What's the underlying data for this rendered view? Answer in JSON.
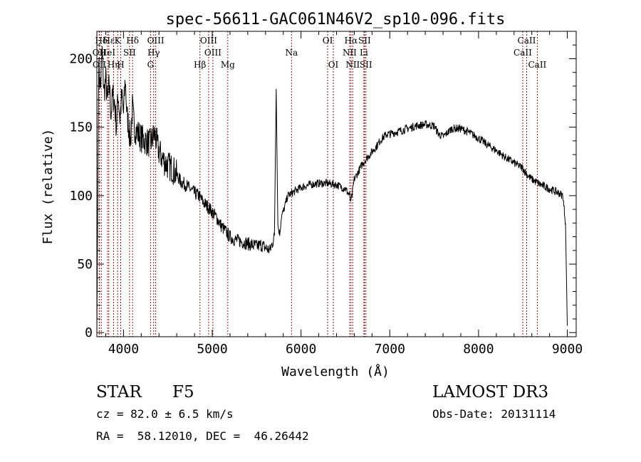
{
  "chart_data": {
    "type": "line",
    "title": "spec-56611-GAC061N46V2_sp10-096.fits",
    "xlabel": "Wavelength (Å)",
    "ylabel": "Flux (relative)",
    "xlim": [
      3700,
      9100
    ],
    "ylim": [
      -3,
      220
    ],
    "xticks": [
      4000,
      5000,
      6000,
      7000,
      8000,
      9000
    ],
    "yticks": [
      0,
      50,
      100,
      150,
      200
    ],
    "series": [
      {
        "name": "spectrum",
        "color": "#000000",
        "x": [
          3700,
          3720,
          3740,
          3760,
          3780,
          3800,
          3820,
          3840,
          3860,
          3880,
          3900,
          3920,
          3940,
          3960,
          3980,
          4000,
          4020,
          4040,
          4060,
          4080,
          4100,
          4120,
          4150,
          4200,
          4250,
          4300,
          4350,
          4400,
          4450,
          4500,
          4550,
          4600,
          4650,
          4700,
          4750,
          4800,
          4850,
          4900,
          4950,
          5000,
          5050,
          5100,
          5150,
          5200,
          5250,
          5300,
          5350,
          5400,
          5450,
          5500,
          5550,
          5600,
          5650,
          5700,
          5720,
          5740,
          5760,
          5780,
          5800,
          5850,
          5900,
          5950,
          6000,
          6100,
          6200,
          6300,
          6400,
          6500,
          6550,
          6563,
          6600,
          6650,
          6700,
          6800,
          6850,
          6900,
          6950,
          6970,
          7000,
          7100,
          7200,
          7300,
          7400,
          7500,
          7550,
          7600,
          7700,
          7800,
          7900,
          8000,
          8100,
          8200,
          8300,
          8400,
          8500,
          8550,
          8600,
          8700,
          8800,
          8900,
          8950,
          8980,
          9000
        ],
        "y": [
          0,
          195,
          178,
          205,
          175,
          185,
          168,
          182,
          160,
          174,
          168,
          150,
          175,
          156,
          172,
          160,
          185,
          158,
          150,
          140,
          165,
          150,
          147,
          142,
          140,
          138,
          145,
          132,
          126,
          122,
          120,
          115,
          110,
          108,
          105,
          102,
          100,
          95,
          92,
          88,
          84,
          78,
          74,
          70,
          68,
          67,
          66,
          65,
          64,
          63,
          64,
          62,
          60,
          70,
          180,
          78,
          72,
          85,
          88,
          100,
          102,
          104,
          106,
          108,
          109,
          109,
          108,
          105,
          100,
          95,
          112,
          118,
          124,
          132,
          136,
          141,
          144,
          145,
          145,
          147,
          149,
          151,
          152,
          151,
          145,
          143,
          149,
          149,
          146,
          142,
          137,
          133,
          128,
          124,
          120,
          115,
          112,
          108,
          105,
          102,
          100,
          80,
          5
        ]
      }
    ],
    "line_ids": [
      {
        "name": "Hδ",
        "wavelength": 3750,
        "row": 1
      },
      {
        "name": "OII",
        "wavelength": 3727,
        "row": 2
      },
      {
        "name": "OII",
        "wavelength": 3729,
        "row": 3
      },
      {
        "name": "Hε",
        "wavelength": 3835,
        "row": 1
      },
      {
        "name": "HeI",
        "wavelength": 3820,
        "row": 2
      },
      {
        "name": "Hη",
        "wavelength": 3889,
        "row": 3
      },
      {
        "name": "K",
        "wavelength": 3934,
        "row": 1
      },
      {
        "name": "SII",
        "wavelength": 4068,
        "row": 2
      },
      {
        "name": "H",
        "wavelength": 3969,
        "row": 3
      },
      {
        "name": "Hδ",
        "wavelength": 4102,
        "row": 1
      },
      {
        "name": "OIII",
        "wavelength": 4363,
        "row": 1
      },
      {
        "name": "Hγ",
        "wavelength": 4340,
        "row": 2
      },
      {
        "name": "G",
        "wavelength": 4305,
        "row": 3
      },
      {
        "name": "Hβ",
        "wavelength": 4861,
        "row": 3
      },
      {
        "name": "OIII",
        "wavelength": 4959,
        "row": 1
      },
      {
        "name": "OIII",
        "wavelength": 5007,
        "row": 2
      },
      {
        "name": "Mg",
        "wavelength": 5175,
        "row": 3
      },
      {
        "name": "Na",
        "wavelength": 5893,
        "row": 2
      },
      {
        "name": "OI",
        "wavelength": 6300,
        "row": 1
      },
      {
        "name": "OI",
        "wavelength": 6364,
        "row": 3
      },
      {
        "name": "Hα",
        "wavelength": 6563,
        "row": 1
      },
      {
        "name": "NII",
        "wavelength": 6548,
        "row": 2
      },
      {
        "name": "NII",
        "wavelength": 6583,
        "row": 3
      },
      {
        "name": "SII",
        "wavelength": 6716,
        "row": 1
      },
      {
        "name": "Li",
        "wavelength": 6708,
        "row": 2
      },
      {
        "name": "SII",
        "wavelength": 6731,
        "row": 3
      },
      {
        "name": "CaII",
        "wavelength": 8542,
        "row": 1
      },
      {
        "name": "CaII",
        "wavelength": 8498,
        "row": 2
      },
      {
        "name": "CaII",
        "wavelength": 8662,
        "row": 3
      }
    ]
  },
  "info": {
    "class": "STAR",
    "subclass": "F5",
    "survey": "LAMOST DR3",
    "cz": "cz = 82.0 ± 6.5 km/s",
    "obs_date": "Obs-Date: 20131114",
    "coords": "RA =  58.12010, DEC =  46.26442"
  },
  "colors": {
    "line_marker": "#8b1a1a",
    "spectrum": "#000000",
    "axis": "#000000"
  }
}
